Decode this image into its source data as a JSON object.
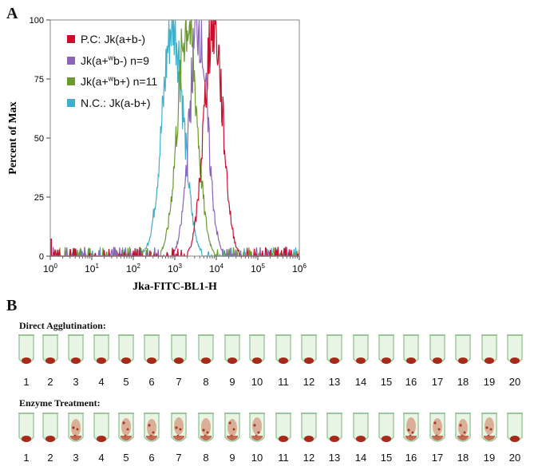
{
  "panel_a": {
    "letter": "A"
  },
  "panel_b": {
    "letter": "B"
  },
  "colors": {
    "pc": "#c8102e",
    "jk_a_w_b_minus": "#8b65b8",
    "jk_a_w_b_plus": "#6a9a2e",
    "nc": "#3fb0cc"
  },
  "chart_data": {
    "type": "line",
    "title": "",
    "xlabel": "Jka-FITC-BL1-H",
    "ylabel": "Percent of Max",
    "xscale": "log",
    "xlim": [
      1,
      1000000
    ],
    "ylim": [
      0,
      100
    ],
    "xticks": [
      {
        "base": "10",
        "exp": "0"
      },
      {
        "base": "10",
        "exp": "1"
      },
      {
        "base": "10",
        "exp": "2"
      },
      {
        "base": "10",
        "exp": "3"
      },
      {
        "base": "10",
        "exp": "4"
      },
      {
        "base": "10",
        "exp": "5"
      },
      {
        "base": "10",
        "exp": "6"
      }
    ],
    "yticks": [
      "0",
      "25",
      "50",
      "75",
      "100"
    ],
    "legend_position": "top-left",
    "series": [
      {
        "name": "P.C: Jk(a+b-)",
        "color": "#c8102e",
        "peak_x": 8500,
        "peak_y": 100,
        "spread": 0.22
      },
      {
        "name": "Jk(a+wb-) n=9",
        "color": "#8b65b8",
        "peak_x": 3700,
        "peak_y": 100,
        "spread": 0.21
      },
      {
        "name": "Jk(a+wb+) n=11",
        "color": "#6a9a2e",
        "peak_x": 2000,
        "peak_y": 100,
        "spread": 0.23
      },
      {
        "name": "N.C.: Jk(a-b+)",
        "color": "#3fb0cc",
        "peak_x": 900,
        "peak_y": 100,
        "spread": 0.25
      }
    ],
    "legend": [
      {
        "main": "P.C: Jk(a+b-)",
        "sup": "",
        "tail": ""
      },
      {
        "main": "Jk(a+",
        "sup": "w",
        "tail": "b-) n=9"
      },
      {
        "main": "Jk(a+",
        "sup": "w",
        "tail": "b+) n=11"
      },
      {
        "main": "N.C.: Jk(a-b+)",
        "sup": "",
        "tail": ""
      }
    ]
  },
  "direct_agglutination": {
    "title": "Direct Agglutination:",
    "tubes": [
      "1",
      "2",
      "3",
      "4",
      "5",
      "6",
      "7",
      "8",
      "9",
      "10",
      "11",
      "12",
      "13",
      "14",
      "15",
      "16",
      "17",
      "18",
      "19",
      "20"
    ]
  },
  "enzyme_treatment": {
    "title": "Enzyme Treatment:",
    "tubes": [
      "1",
      "2",
      "3",
      "4",
      "5",
      "6",
      "7",
      "8",
      "9",
      "10",
      "11",
      "12",
      "13",
      "14",
      "15",
      "16",
      "17",
      "18",
      "19",
      "20"
    ],
    "agglutinated": [
      false,
      false,
      true,
      false,
      true,
      true,
      true,
      true,
      true,
      true,
      false,
      false,
      false,
      false,
      false,
      true,
      true,
      true,
      true,
      false
    ]
  }
}
